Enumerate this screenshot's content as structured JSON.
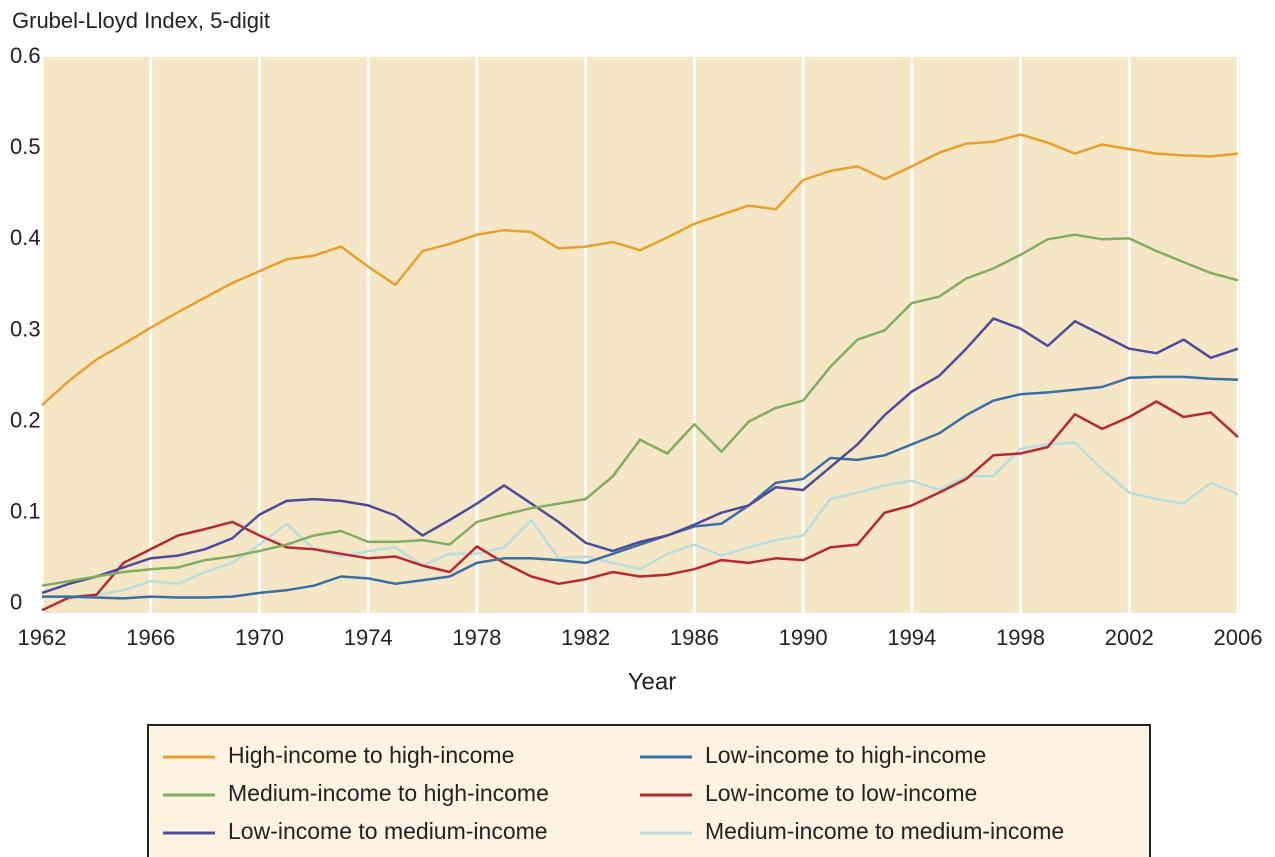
{
  "chart_data": {
    "type": "line",
    "y_label": "Grubel-Lloyd Index, 5-digit",
    "x_label": "Year",
    "x": [
      1962,
      1963,
      1964,
      1965,
      1966,
      1967,
      1968,
      1969,
      1970,
      1971,
      1972,
      1973,
      1974,
      1975,
      1976,
      1977,
      1978,
      1979,
      1980,
      1981,
      1982,
      1983,
      1984,
      1985,
      1986,
      1987,
      1988,
      1989,
      1990,
      1991,
      1992,
      1993,
      1994,
      1995,
      1996,
      1997,
      1998,
      1999,
      2000,
      2001,
      2002,
      2003,
      2004,
      2005,
      2006
    ],
    "series": [
      {
        "name": "High-income to high-income",
        "color": "#e8a02a",
        "values": [
          0.218,
          0.245,
          0.268,
          0.285,
          0.303,
          0.32,
          0.336,
          0.352,
          0.365,
          0.378,
          0.382,
          0.392,
          0.37,
          0.35,
          0.387,
          0.395,
          0.405,
          0.41,
          0.408,
          0.39,
          0.392,
          0.397,
          0.388,
          0.402,
          0.417,
          0.427,
          0.437,
          0.433,
          0.465,
          0.475,
          0.48,
          0.466,
          0.48,
          0.495,
          0.505,
          0.507,
          0.515,
          0.506,
          0.494,
          0.504,
          0.499,
          0.494,
          0.492,
          0.491,
          0.494
        ]
      },
      {
        "name": "Medium-income to high-income",
        "color": "#7fae5f",
        "values": [
          0.02,
          0.025,
          0.03,
          0.035,
          0.038,
          0.04,
          0.048,
          0.052,
          0.058,
          0.065,
          0.075,
          0.08,
          0.068,
          0.068,
          0.07,
          0.065,
          0.09,
          0.098,
          0.105,
          0.11,
          0.115,
          0.14,
          0.18,
          0.165,
          0.197,
          0.167,
          0.2,
          0.215,
          0.223,
          0.26,
          0.29,
          0.3,
          0.33,
          0.337,
          0.357,
          0.368,
          0.383,
          0.4,
          0.405,
          0.4,
          0.401,
          0.387,
          0.375,
          0.363,
          0.355
        ]
      },
      {
        "name": "Low-income to medium-income",
        "color": "#4b4d9c",
        "values": [
          0.012,
          0.022,
          0.03,
          0.04,
          0.05,
          0.053,
          0.06,
          0.072,
          0.098,
          0.113,
          0.115,
          0.113,
          0.108,
          0.097,
          0.075,
          0.092,
          0.11,
          0.13,
          0.11,
          0.09,
          0.067,
          0.058,
          0.068,
          0.075,
          0.087,
          0.1,
          0.108,
          0.128,
          0.125,
          0.15,
          0.175,
          0.207,
          0.233,
          0.25,
          0.28,
          0.313,
          0.302,
          0.283,
          0.31,
          0.295,
          0.28,
          0.275,
          0.29,
          0.27,
          0.28
        ]
      },
      {
        "name": "Low-income to high-income",
        "color": "#3a6fa5",
        "values": [
          0.008,
          0.008,
          0.007,
          0.006,
          0.008,
          0.007,
          0.007,
          0.008,
          0.012,
          0.015,
          0.02,
          0.03,
          0.028,
          0.022,
          0.026,
          0.03,
          0.045,
          0.05,
          0.05,
          0.048,
          0.045,
          0.055,
          0.065,
          0.075,
          0.085,
          0.088,
          0.108,
          0.133,
          0.137,
          0.16,
          0.158,
          0.163,
          0.175,
          0.187,
          0.207,
          0.223,
          0.23,
          0.232,
          0.235,
          0.238,
          0.248,
          0.249,
          0.249,
          0.247,
          0.246
        ]
      },
      {
        "name": "Low-income to low-income",
        "color": "#b8282e",
        "values": [
          -0.007,
          0.007,
          0.01,
          0.045,
          0.06,
          0.075,
          0.082,
          0.09,
          0.075,
          0.062,
          0.06,
          0.055,
          0.05,
          0.052,
          0.042,
          0.035,
          0.063,
          0.045,
          0.03,
          0.022,
          0.027,
          0.035,
          0.03,
          0.032,
          0.038,
          0.048,
          0.045,
          0.05,
          0.048,
          0.062,
          0.065,
          0.1,
          0.108,
          0.122,
          0.137,
          0.163,
          0.165,
          0.172,
          0.208,
          0.192,
          0.205,
          0.222,
          0.205,
          0.21,
          0.183
        ]
      },
      {
        "name": "Medium-income to medium-income",
        "color": "#b7dede",
        "values": [
          0.008,
          0.008,
          0.01,
          0.015,
          0.025,
          0.022,
          0.035,
          0.045,
          0.065,
          0.088,
          0.06,
          0.052,
          0.058,
          0.062,
          0.042,
          0.055,
          0.055,
          0.062,
          0.092,
          0.05,
          0.052,
          0.045,
          0.038,
          0.055,
          0.065,
          0.053,
          0.062,
          0.07,
          0.075,
          0.115,
          0.122,
          0.13,
          0.135,
          0.125,
          0.14,
          0.14,
          0.17,
          0.175,
          0.177,
          0.148,
          0.122,
          0.115,
          0.11,
          0.133,
          0.12
        ]
      }
    ],
    "xlim": [
      1962,
      2006
    ],
    "xticks": [
      1962,
      1966,
      1970,
      1974,
      1978,
      1982,
      1986,
      1990,
      1994,
      1998,
      2002,
      2006
    ],
    "ylim": [
      -0.01,
      0.6
    ],
    "yticks": [
      0,
      0.1,
      0.2,
      0.3,
      0.4,
      0.5,
      0.6
    ],
    "grid": "x",
    "plot_background": "#f5e6c6",
    "legend_position": "bottom"
  }
}
